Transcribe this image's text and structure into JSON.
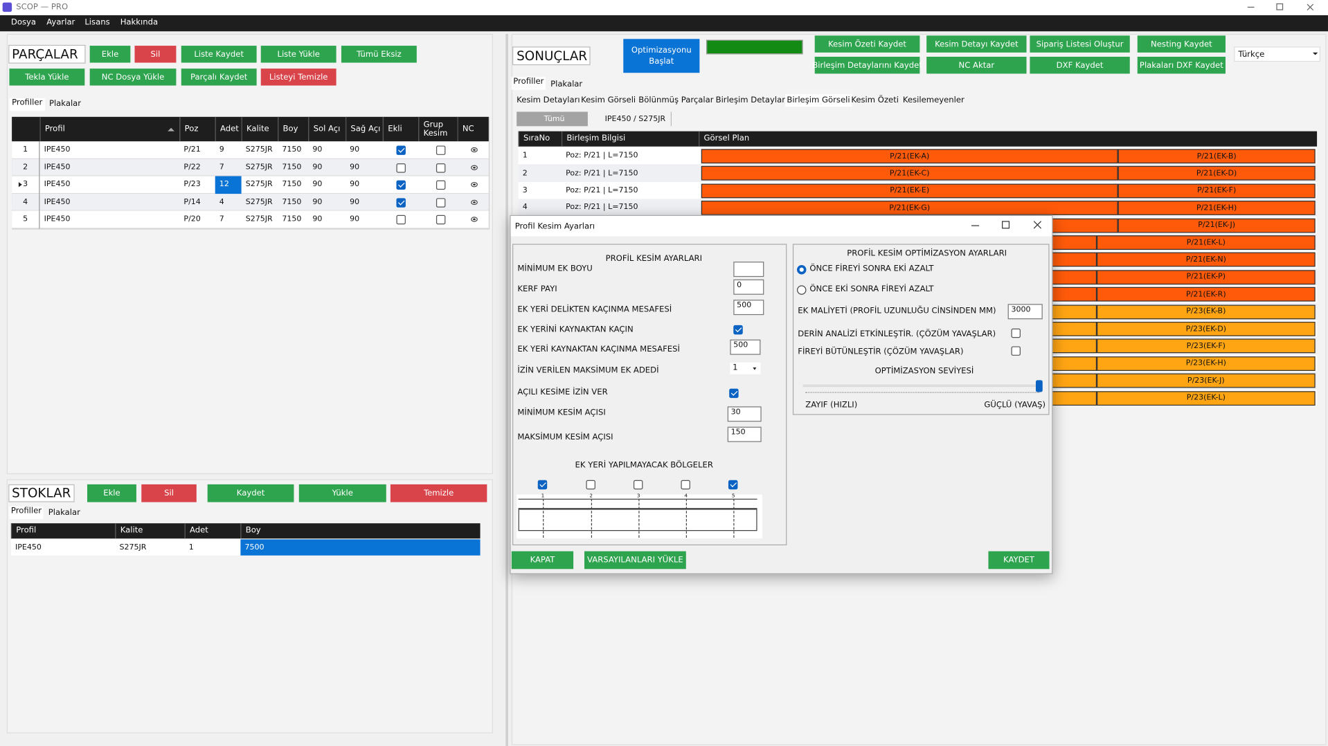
{
  "window": {
    "title": "SCOP — PRO",
    "menu": [
      "Dosya",
      "Ayarlar",
      "Lisans",
      "Hakkında"
    ]
  },
  "parts": {
    "title": "PARÇALAR",
    "buttons": [
      "Ekle",
      "Sil",
      "Liste Kaydet",
      "Liste Yükle",
      "Tümü Eksiz",
      "Tekla Yükle",
      "NC Dosya Yükle",
      "Parçalı Kaydet",
      "Listeyi Temizle"
    ],
    "tabs": [
      "Profiller",
      "Plakalar"
    ],
    "columns": [
      "Profil",
      "Poz",
      "Adet",
      "Kalite",
      "Boy",
      "Sol Açı",
      "Sağ Açı",
      "Ekli",
      "Grup Kesim",
      "NC"
    ],
    "rows": [
      {
        "no": "1",
        "profil": "IPE450",
        "poz": "P/21",
        "adet": "9",
        "kalite": "S275JR",
        "boy": "7150",
        "sol": "90",
        "sag": "90",
        "ekli": true,
        "grup": false
      },
      {
        "no": "2",
        "profil": "IPE450",
        "poz": "P/22",
        "adet": "7",
        "kalite": "S275JR",
        "boy": "7150",
        "sol": "90",
        "sag": "90",
        "ekli": false,
        "grup": false
      },
      {
        "no": "3",
        "profil": "IPE450",
        "poz": "P/23",
        "adet": "12",
        "kalite": "S275JR",
        "boy": "7150",
        "sol": "90",
        "sag": "90",
        "ekli": true,
        "grup": false
      },
      {
        "no": "4",
        "profil": "IPE450",
        "poz": "P/14",
        "adet": "4",
        "kalite": "S275JR",
        "boy": "7150",
        "sol": "90",
        "sag": "90",
        "ekli": true,
        "grup": false
      },
      {
        "no": "5",
        "profil": "IPE450",
        "poz": "P/20",
        "adet": "7",
        "kalite": "S275JR",
        "boy": "7150",
        "sol": "90",
        "sag": "90",
        "ekli": false,
        "grup": false
      }
    ]
  },
  "stocks": {
    "title": "STOKLAR",
    "buttons": [
      "Ekle",
      "Sil",
      "Kaydet",
      "Yükle",
      "Temizle"
    ],
    "tabs": [
      "Profiller",
      "Plakalar"
    ],
    "columns": [
      "Profil",
      "Kalite",
      "Adet",
      "Boy"
    ],
    "rows": [
      [
        "IPE450",
        "S275JR",
        "1",
        "7500"
      ]
    ]
  },
  "results": {
    "title": "SONUÇLAR",
    "start": "Optimizasyonu Başlat",
    "buttons": [
      "Kesim Özeti Kaydet",
      "Kesim Detayı Kaydet",
      "Sipariş Listesi Oluştur",
      "Nesting Kaydet",
      "Birleşim Detaylarını Kaydet",
      "NC Aktar",
      "DXF Kaydet",
      "Plakaları DXF Kaydet"
    ],
    "language": "Türkçe",
    "tabs": [
      "Profiller",
      "Plakalar"
    ],
    "subtabs": [
      "Kesim Detayları",
      "Kesim Görseli",
      "Bölünmüş Parçalar",
      "Birleşim Detayları",
      "Birleşim Görseli",
      "Kesim Özeti",
      "Kesilemeyenler"
    ],
    "filters": [
      "Tümü",
      "IPE450 / S275JR"
    ],
    "columns": [
      "SıraNo",
      "Birleşim Bilgisi",
      "Görsel Plan"
    ],
    "rows": [
      {
        "no": "1",
        "info": "Poz: P/21 | L=7150",
        "color": "#ff5a0a",
        "segments": [
          "P/21(EK-A)",
          "P/21(EK-B)"
        ]
      },
      {
        "no": "2",
        "info": "Poz: P/21 | L=7150",
        "color": "#ff5a0a",
        "segments": [
          "P/21(EK-C)",
          "P/21(EK-D)"
        ]
      },
      {
        "no": "3",
        "info": "Poz: P/21 | L=7150",
        "color": "#ff5a0a",
        "segments": [
          "P/21(EK-E)",
          "P/21(EK-F)"
        ]
      },
      {
        "no": "4",
        "info": "Poz: P/21 | L=7150",
        "color": "#ff5a0a",
        "segments": [
          "P/21(EK-G)",
          "P/21(EK-H)"
        ]
      },
      {
        "no": null,
        "info": null,
        "color": "#ff5a0a",
        "segments": [
          null,
          "P/21(EK-J)"
        ]
      },
      {
        "no": null,
        "info": null,
        "color": "#ff5a0a",
        "segments": [
          null,
          "P/21(EK-L)"
        ]
      },
      {
        "no": null,
        "info": null,
        "color": "#ff5a0a",
        "segments": [
          null,
          "P/21(EK-N)"
        ]
      },
      {
        "no": null,
        "info": null,
        "color": "#ff5a0a",
        "segments": [
          null,
          "P/21(EK-P)"
        ]
      },
      {
        "no": null,
        "info": null,
        "color": "#ff5a0a",
        "segments": [
          null,
          "P/21(EK-R)"
        ]
      },
      {
        "no": null,
        "info": null,
        "color": "#ffa514",
        "segments": [
          null,
          "P/23(EK-B)"
        ]
      },
      {
        "no": null,
        "info": null,
        "color": "#ffa514",
        "segments": [
          null,
          "P/23(EK-D)"
        ]
      },
      {
        "no": null,
        "info": null,
        "color": "#ffa514",
        "segments": [
          null,
          "P/23(EK-F)"
        ]
      },
      {
        "no": null,
        "info": null,
        "color": "#ffa514",
        "segments": [
          null,
          "P/23(EK-H)"
        ]
      },
      {
        "no": null,
        "info": null,
        "color": "#ffa514",
        "segments": [
          null,
          "P/23(EK-J)"
        ]
      },
      {
        "no": null,
        "info": null,
        "color": "#ffa514",
        "segments": [
          null,
          "P/23(EK-L)"
        ]
      }
    ]
  },
  "dialog": {
    "title": "Profil Kesim Ayarları",
    "left_title": "PROFİL KESİM AYARLARI",
    "fields": [
      {
        "label": "MİNİMUM EK BOYU",
        "value": null,
        "kind": "input"
      },
      {
        "label": "KERF PAYI",
        "value": "0",
        "kind": "input"
      },
      {
        "label": "EK YERİ DELİKTEN KAÇINMA MESAFESİ",
        "value": "500",
        "kind": "input"
      },
      {
        "label": "EK YERİNİ KAYNAKTAN KAÇIN",
        "checked": true,
        "kind": "check"
      },
      {
        "label": "EK YERİ KAYNAKTAN KAÇINMA MESAFESİ",
        "value": "500",
        "kind": "input"
      },
      {
        "label": "İZİN VERİLEN MAKSİMUM EK ADEDİ",
        "value": "1",
        "kind": "select"
      },
      {
        "label": "AÇILI KESİME İZİN VER",
        "checked": true,
        "kind": "check"
      },
      {
        "label": "MİNİMUM KESİM AÇISI",
        "value": "30",
        "kind": "input"
      },
      {
        "label": "MAKSİMUM KESİM AÇISI",
        "value": "150",
        "kind": "input"
      }
    ],
    "zones_title": "EK YERİ YAPILMAYACAK BÖLGELER",
    "zones": [
      {
        "label": "1",
        "checked": true
      },
      {
        "label": "2",
        "checked": false
      },
      {
        "label": "3",
        "checked": false
      },
      {
        "label": "4",
        "checked": false
      },
      {
        "label": "5",
        "checked": true
      }
    ],
    "right_title": "PROFİL KESİM OPTİMİZASYON AYARLARI",
    "radios": [
      {
        "label": "ÖNCE FİREYİ SONRA EKİ AZALT",
        "selected": true
      },
      {
        "label": "ÖNCE EKİ SONRA FİREYİ AZALT",
        "selected": false
      }
    ],
    "cost_label": "EK MALİYETİ (PROFİL UZUNLUĞU CİNSİNDEN MM)",
    "cost_value": "3000",
    "options": [
      {
        "label": "DERİN ANALİZİ ETKİNLEŞTİR. (ÇÖZÜM YAVAŞLAR)",
        "checked": false
      },
      {
        "label": "FİREYİ BÜTÜNLEŞTİR (ÇÖZÜM YAVAŞLAR)",
        "checked": false
      }
    ],
    "level_title": "OPTİMİZASYON SEVİYESİ",
    "level_min": "ZAYIF (HIZLI)",
    "level_max": "GÜÇLÜ (YAVAŞ)",
    "buttons": [
      "KAPAT",
      "VARSAYILANLARI YÜKLE",
      "KAYDET"
    ]
  }
}
